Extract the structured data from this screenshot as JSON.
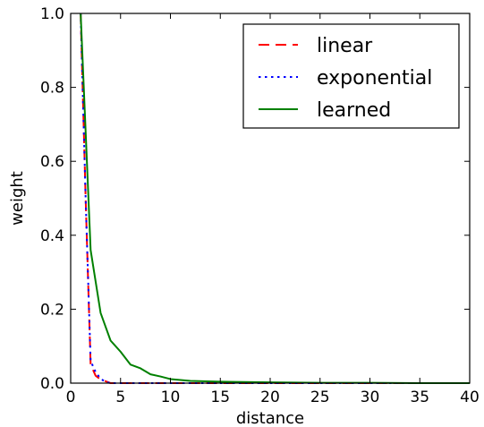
{
  "chart_data": {
    "type": "line",
    "title": "",
    "xlabel": "distance",
    "ylabel": "weight",
    "xlim": [
      0,
      40
    ],
    "ylim": [
      0,
      1.0
    ],
    "xticks": [
      0,
      5,
      10,
      15,
      20,
      25,
      30,
      35,
      40
    ],
    "yticks": [
      0.0,
      0.2,
      0.4,
      0.6,
      0.8,
      1.0
    ],
    "xtick_labels": [
      "0",
      "5",
      "10",
      "15",
      "20",
      "25",
      "30",
      "35",
      "40"
    ],
    "ytick_labels": [
      "0.0",
      "0.2",
      "0.4",
      "0.6",
      "0.8",
      "1.0"
    ],
    "grid": false,
    "legend_position": "top-right",
    "series": [
      {
        "name": "linear",
        "color": "#ff0000",
        "dash": "dashed",
        "x": [
          1,
          1.5,
          2,
          2.5,
          3,
          4,
          5,
          10,
          20,
          30,
          40
        ],
        "y": [
          1.0,
          0.5,
          0.05,
          0.02,
          0.01,
          0.0,
          0.0,
          0.0,
          0.0,
          0.0,
          0.0
        ]
      },
      {
        "name": "exponential",
        "color": "#0000ff",
        "dash": "dotted",
        "x": [
          1,
          1.5,
          2,
          2.5,
          3,
          3.5,
          4,
          5,
          10,
          20,
          30,
          40
        ],
        "y": [
          1.0,
          0.5,
          0.06,
          0.03,
          0.012,
          0.003,
          0.0,
          0.0,
          0.0,
          0.0,
          0.0,
          0.0
        ]
      },
      {
        "name": "learned",
        "color": "#008000",
        "dash": "solid",
        "x": [
          1,
          2,
          3,
          4,
          5,
          6,
          7,
          8,
          9,
          10,
          12,
          15,
          20,
          25,
          30,
          35,
          40
        ],
        "y": [
          1.0,
          0.36,
          0.19,
          0.115,
          0.085,
          0.05,
          0.04,
          0.024,
          0.018,
          0.011,
          0.006,
          0.004,
          0.002,
          0.001,
          0.001,
          0.0,
          0.0
        ]
      }
    ]
  }
}
